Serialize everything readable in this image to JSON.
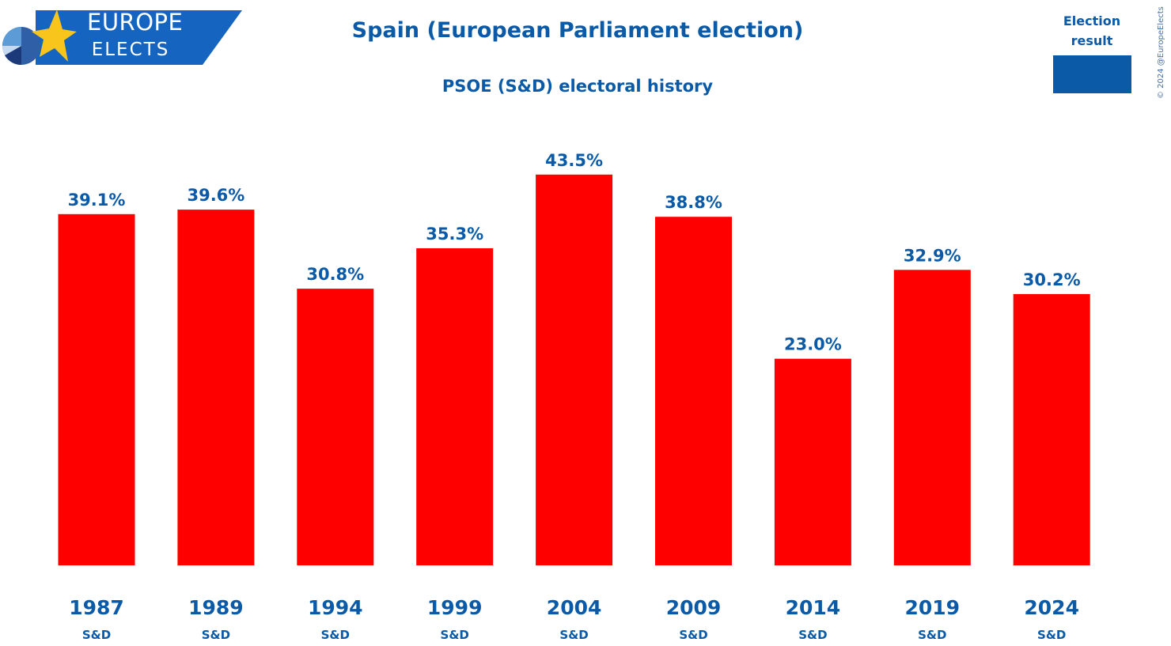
{
  "branding": {
    "logo_line1": "EUROPE",
    "logo_line2": "ELECTS",
    "copyright": "© 2024 @EuropeElects"
  },
  "colors": {
    "primary_blue": "#0a5aa8",
    "bar_red": "#ff0000",
    "logo_banner": "#1565c0",
    "star_yellow": "#f7c51b"
  },
  "legend": {
    "label": "Election result"
  },
  "chart_data": {
    "type": "bar",
    "title": "Spain (European Parliament election)",
    "subtitle": "PSOE (S&D) electoral history",
    "categories": [
      "1987",
      "1989",
      "1994",
      "1999",
      "2004",
      "2009",
      "2014",
      "2019",
      "2024"
    ],
    "group_labels": [
      "S&D",
      "S&D",
      "S&D",
      "S&D",
      "S&D",
      "S&D",
      "S&D",
      "S&D",
      "S&D"
    ],
    "series": [
      {
        "name": "Election result",
        "values": [
          39.1,
          39.6,
          30.8,
          35.3,
          43.5,
          38.8,
          23.0,
          32.9,
          30.2
        ],
        "labels": [
          "39.1%",
          "39.6%",
          "30.8%",
          "35.3%",
          "43.5%",
          "38.8%",
          "23.0%",
          "32.9%",
          "30.2%"
        ]
      }
    ],
    "xlabel": "",
    "ylabel": "",
    "ylim": [
      0,
      45
    ],
    "grid": false,
    "legend_position": "top-right"
  }
}
